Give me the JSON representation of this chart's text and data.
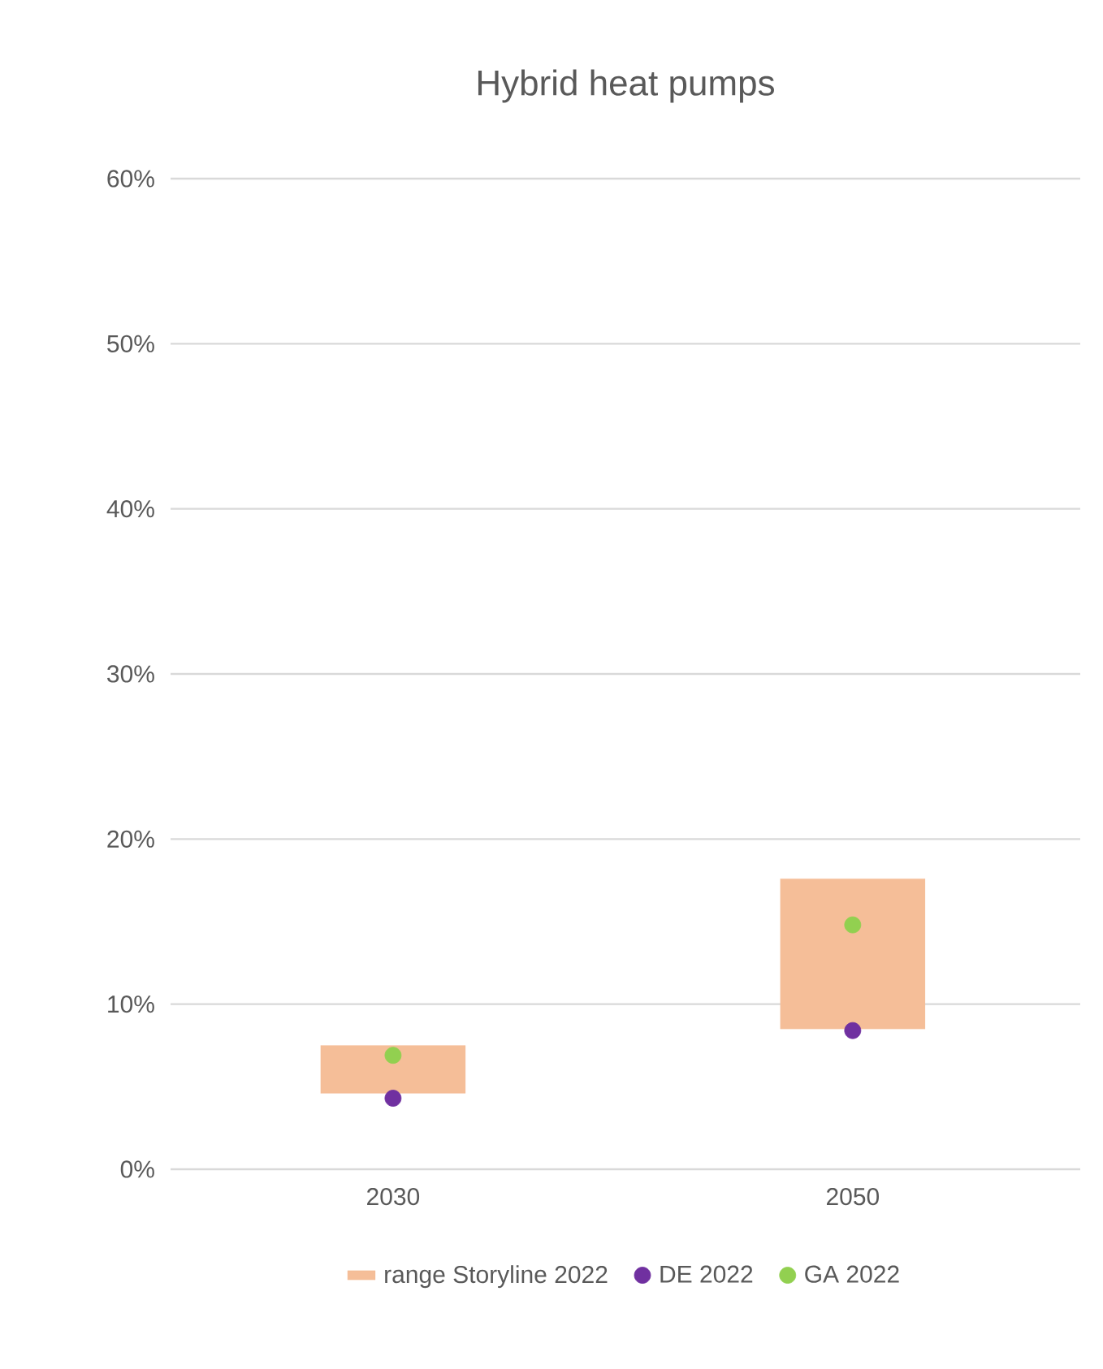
{
  "chart_data": {
    "type": "bar",
    "title": "Hybrid heat pumps",
    "categories": [
      "2030",
      "2050"
    ],
    "series": [
      {
        "name": "range Storyline 2022",
        "color": "#f5be98",
        "base": [
          4.6,
          8.5
        ],
        "values": [
          2.9,
          9.1
        ]
      },
      {
        "name": "DE 2022",
        "type": "scatter",
        "color": "#7030a0",
        "values": [
          4.3,
          8.4
        ]
      },
      {
        "name": "GA 2022",
        "type": "scatter",
        "color": "#92d050",
        "values": [
          6.9,
          14.8
        ]
      }
    ],
    "ylim": [
      0,
      60
    ],
    "yticks": [
      {
        "value": 0,
        "label": "0%"
      },
      {
        "value": 10,
        "label": "10%"
      },
      {
        "value": 20,
        "label": "20%"
      },
      {
        "value": 30,
        "label": "30%"
      },
      {
        "value": 40,
        "label": "40%"
      },
      {
        "value": 50,
        "label": "50%"
      },
      {
        "value": 60,
        "label": "60%"
      }
    ],
    "grid": "y",
    "legend": "bottom"
  }
}
